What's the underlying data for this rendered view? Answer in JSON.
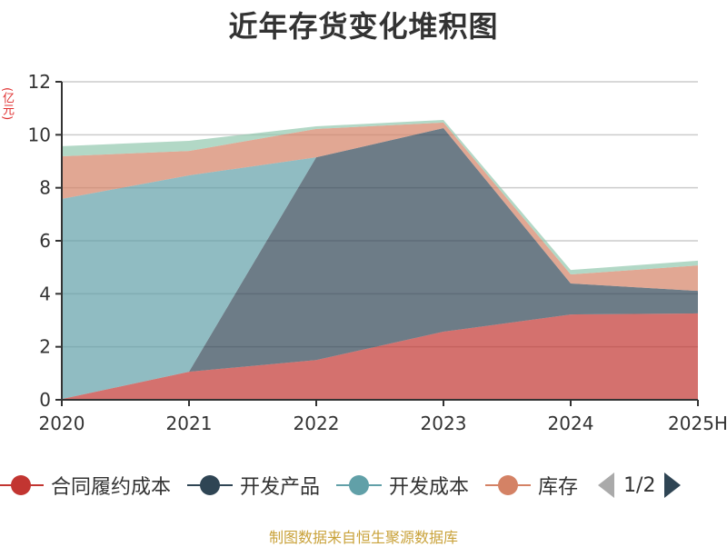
{
  "title": "近年存货变化堆积图",
  "unit": "(亿元)",
  "legend": {
    "items": [
      {
        "label": "合同履约成本",
        "color": "#c23531"
      },
      {
        "label": "开发产品",
        "color": "#2f4554"
      },
      {
        "label": "开发成本",
        "color": "#61a0a8"
      },
      {
        "label": "库存",
        "color": "#d48265"
      }
    ],
    "page": "1/2"
  },
  "footer": "制图数据来自恒生聚源数据库",
  "chart_data": {
    "type": "area",
    "stacked": true,
    "title": "近年存货变化堆积图",
    "xlabel": "",
    "ylabel": "(亿元)",
    "categories": [
      "2020",
      "2021",
      "2022",
      "2023",
      "2024",
      "2025H"
    ],
    "ylim": [
      0,
      12
    ],
    "yticks": [
      0,
      2,
      4,
      6,
      8,
      10,
      12
    ],
    "grid": true,
    "legend_position": "bottom",
    "series": [
      {
        "name": "合同履约成本",
        "color": "#c23531",
        "values": [
          0.03,
          1.06,
          1.5,
          2.57,
          3.22,
          3.26
        ]
      },
      {
        "name": "开发产品",
        "color": "#2f4554",
        "values": [
          0,
          0,
          7.65,
          7.68,
          1.17,
          0.85
        ]
      },
      {
        "name": "开发成本",
        "color": "#61a0a8",
        "values": [
          7.55,
          7.41,
          0,
          0,
          0,
          0
        ]
      },
      {
        "name": "库存",
        "color": "#d48265",
        "values": [
          1.61,
          0.92,
          1.07,
          0.21,
          0.34,
          0.96
        ]
      },
      {
        "name": "",
        "color": "#91c7ae",
        "values": [
          0.38,
          0.38,
          0.1,
          0.1,
          0.17,
          0.18
        ]
      }
    ]
  }
}
